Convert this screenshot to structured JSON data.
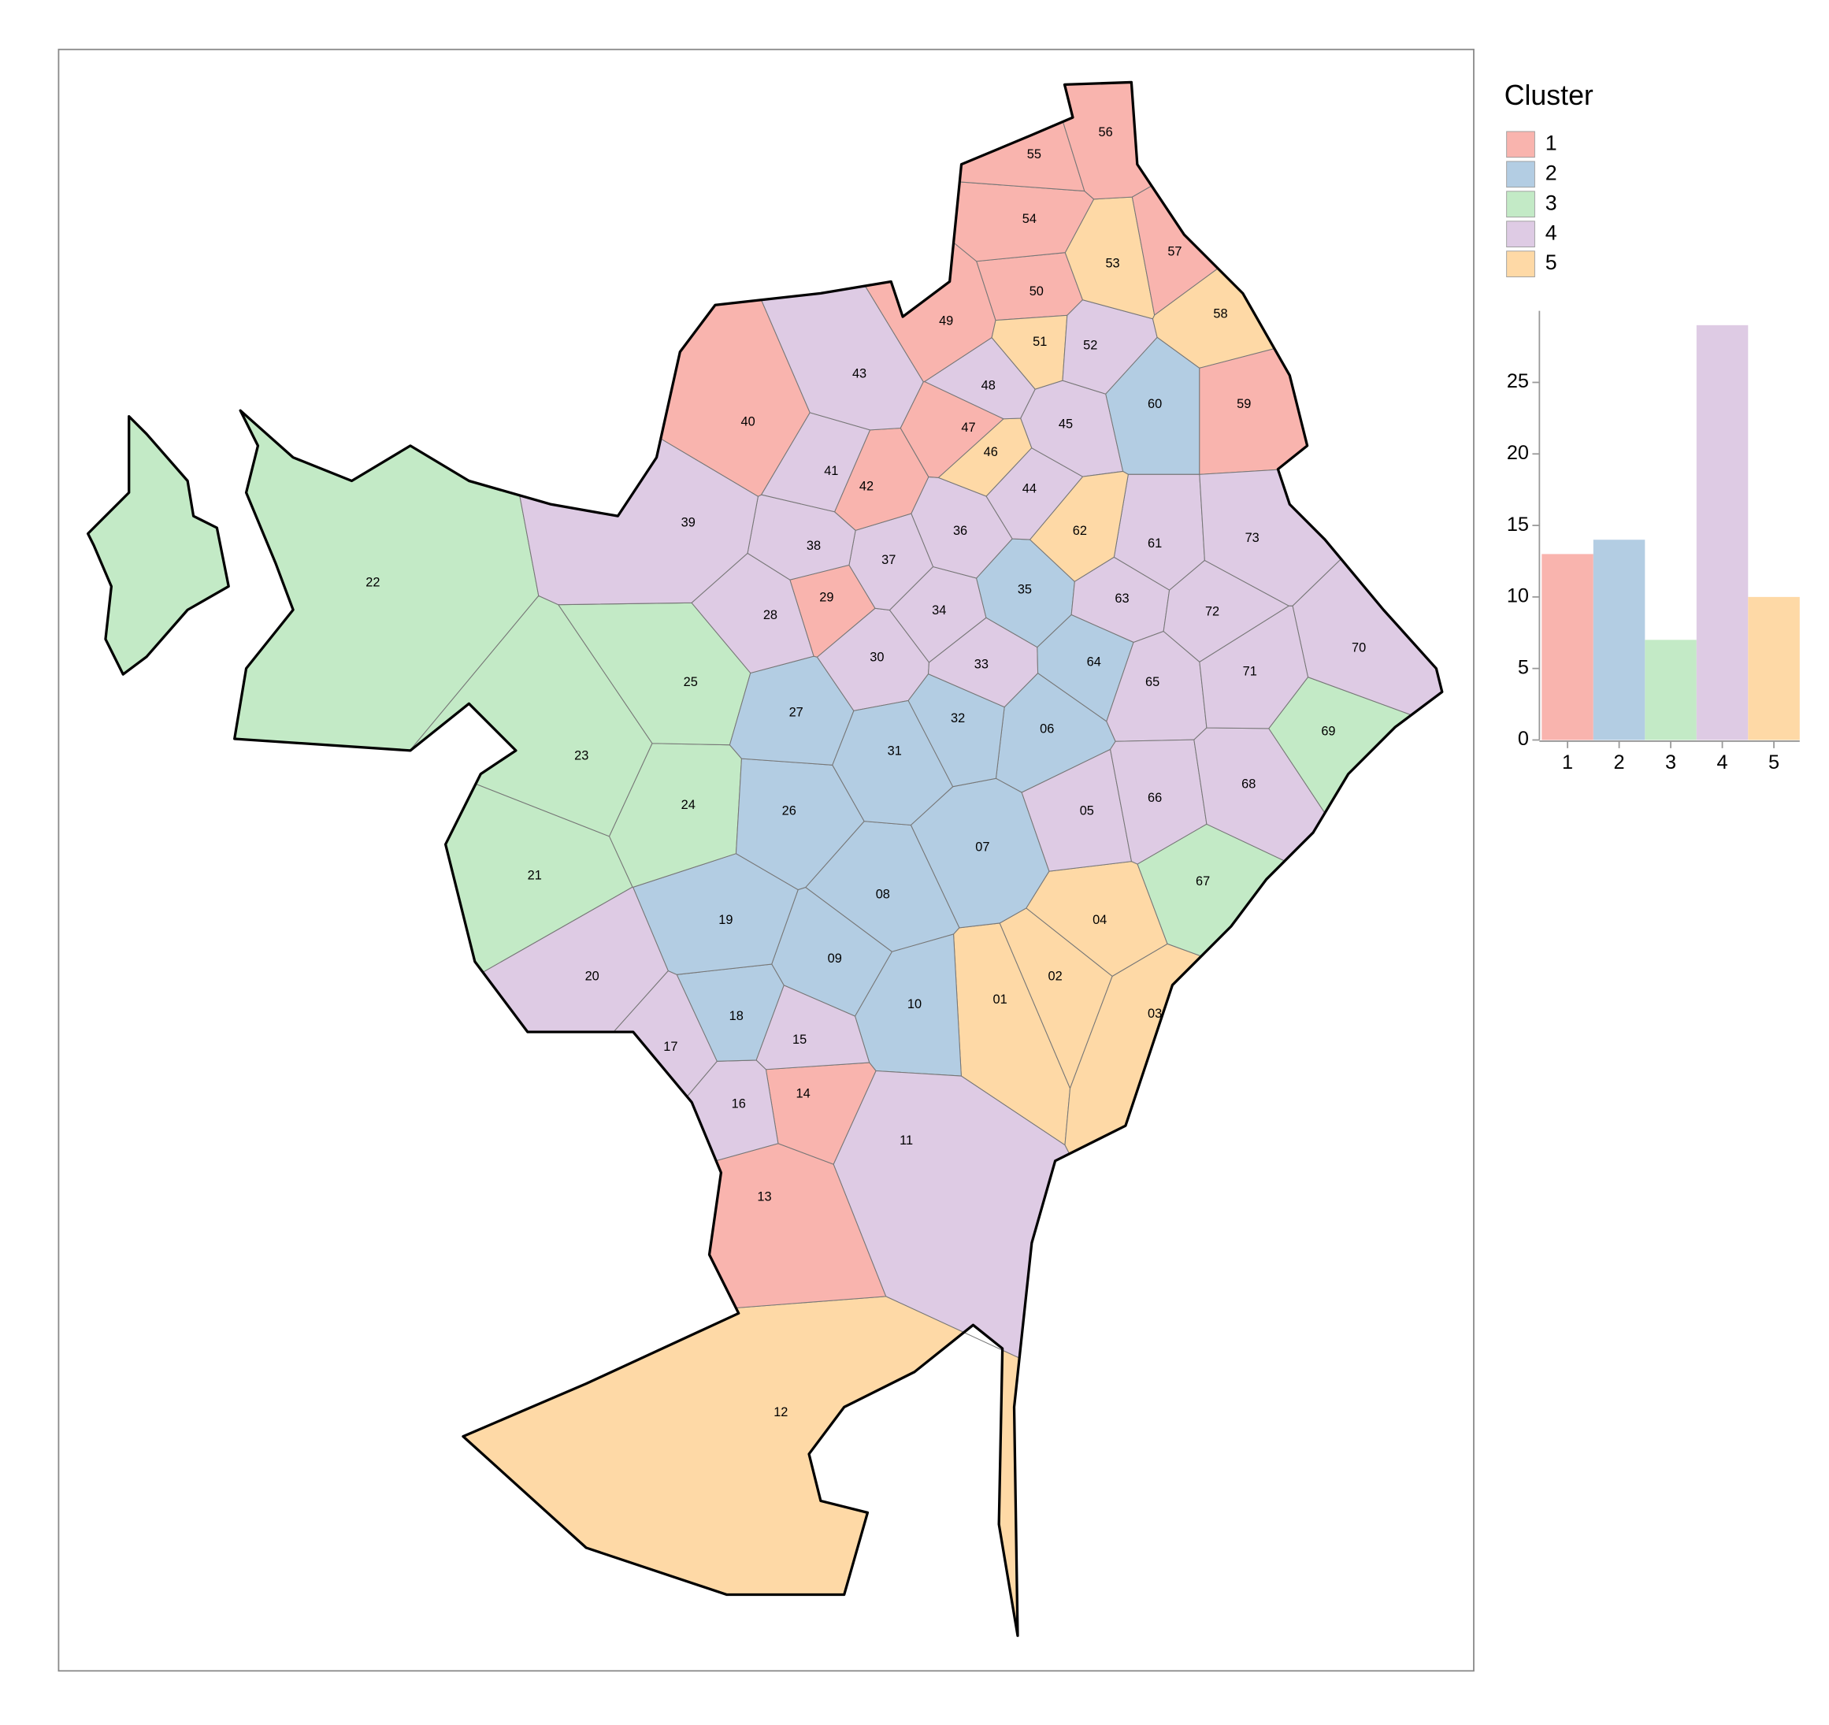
{
  "map": {
    "neighborhoods": [
      {
        "label": "01",
        "cluster": 5
      },
      {
        "label": "02",
        "cluster": 5
      },
      {
        "label": "03",
        "cluster": 5
      },
      {
        "label": "04",
        "cluster": 5
      },
      {
        "label": "05",
        "cluster": 4
      },
      {
        "label": "06",
        "cluster": 2
      },
      {
        "label": "07",
        "cluster": 2
      },
      {
        "label": "08",
        "cluster": 2
      },
      {
        "label": "09",
        "cluster": 2
      },
      {
        "label": "10",
        "cluster": 2
      },
      {
        "label": "11",
        "cluster": 4
      },
      {
        "label": "12",
        "cluster": 5
      },
      {
        "label": "13",
        "cluster": 1
      },
      {
        "label": "14",
        "cluster": 1
      },
      {
        "label": "15",
        "cluster": 4
      },
      {
        "label": "16",
        "cluster": 4
      },
      {
        "label": "17",
        "cluster": 4
      },
      {
        "label": "18",
        "cluster": 2
      },
      {
        "label": "19",
        "cluster": 2
      },
      {
        "label": "20",
        "cluster": 4
      },
      {
        "label": "21",
        "cluster": 3
      },
      {
        "label": "22",
        "cluster": 3
      },
      {
        "label": "23",
        "cluster": 3
      },
      {
        "label": "24",
        "cluster": 3
      },
      {
        "label": "25",
        "cluster": 3
      },
      {
        "label": "26",
        "cluster": 2
      },
      {
        "label": "27",
        "cluster": 2
      },
      {
        "label": "28",
        "cluster": 4
      },
      {
        "label": "29",
        "cluster": 1
      },
      {
        "label": "30",
        "cluster": 4
      },
      {
        "label": "31",
        "cluster": 2
      },
      {
        "label": "32",
        "cluster": 2
      },
      {
        "label": "33",
        "cluster": 4
      },
      {
        "label": "34",
        "cluster": 4
      },
      {
        "label": "35",
        "cluster": 2
      },
      {
        "label": "36",
        "cluster": 4
      },
      {
        "label": "37",
        "cluster": 4
      },
      {
        "label": "38",
        "cluster": 4
      },
      {
        "label": "39",
        "cluster": 4
      },
      {
        "label": "40",
        "cluster": 1
      },
      {
        "label": "41",
        "cluster": 4
      },
      {
        "label": "42",
        "cluster": 1
      },
      {
        "label": "43",
        "cluster": 4
      },
      {
        "label": "44",
        "cluster": 4
      },
      {
        "label": "45",
        "cluster": 4
      },
      {
        "label": "46",
        "cluster": 5
      },
      {
        "label": "47",
        "cluster": 1
      },
      {
        "label": "48",
        "cluster": 4
      },
      {
        "label": "49",
        "cluster": 1
      },
      {
        "label": "50",
        "cluster": 1
      },
      {
        "label": "51",
        "cluster": 5
      },
      {
        "label": "52",
        "cluster": 4
      },
      {
        "label": "53",
        "cluster": 5
      },
      {
        "label": "54",
        "cluster": 1
      },
      {
        "label": "55",
        "cluster": 1
      },
      {
        "label": "56",
        "cluster": 1
      },
      {
        "label": "57",
        "cluster": 1
      },
      {
        "label": "58",
        "cluster": 5
      },
      {
        "label": "59",
        "cluster": 1
      },
      {
        "label": "60",
        "cluster": 2
      },
      {
        "label": "61",
        "cluster": 4
      },
      {
        "label": "62",
        "cluster": 5
      },
      {
        "label": "63",
        "cluster": 4
      },
      {
        "label": "64",
        "cluster": 2
      },
      {
        "label": "65",
        "cluster": 4
      },
      {
        "label": "66",
        "cluster": 4
      },
      {
        "label": "67",
        "cluster": 3
      },
      {
        "label": "68",
        "cluster": 4
      },
      {
        "label": "69",
        "cluster": 3
      },
      {
        "label": "70",
        "cluster": 4
      },
      {
        "label": "71",
        "cluster": 4
      },
      {
        "label": "72",
        "cluster": 4
      },
      {
        "label": "73",
        "cluster": 4
      }
    ]
  },
  "legend": {
    "title": "Cluster",
    "items": [
      {
        "label": "1",
        "color": "#f9b4ae"
      },
      {
        "label": "2",
        "color": "#b3cde3"
      },
      {
        "label": "3",
        "color": "#c3eac6"
      },
      {
        "label": "4",
        "color": "#decbe4"
      },
      {
        "label": "5",
        "color": "#fed9a6"
      }
    ]
  },
  "chart_data": {
    "type": "bar",
    "categories": [
      "1",
      "2",
      "3",
      "4",
      "5"
    ],
    "values": [
      13,
      14,
      7,
      29,
      10
    ],
    "colors": [
      "#f9b4ae",
      "#b3cde3",
      "#c3eac6",
      "#decbe4",
      "#fed9a6"
    ],
    "ylim": [
      0,
      30
    ],
    "yticks": [
      0,
      5,
      10,
      15,
      20,
      25
    ]
  }
}
